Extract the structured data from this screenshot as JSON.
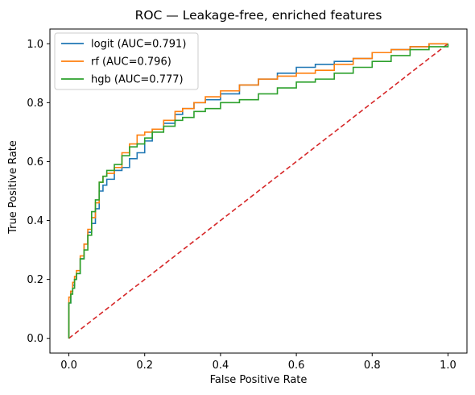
{
  "chart_data": {
    "type": "line",
    "title": "ROC — Leakage-free, enriched features",
    "xlabel": "False Positive Rate",
    "ylabel": "True Positive Rate",
    "xlim": [
      -0.05,
      1.05
    ],
    "ylim": [
      -0.05,
      1.05
    ],
    "xticks": [
      0.0,
      0.2,
      0.4,
      0.6,
      0.8,
      1.0
    ],
    "yticks": [
      0.0,
      0.2,
      0.4,
      0.6,
      0.8,
      1.0
    ],
    "xtick_labels": [
      "0.0",
      "0.2",
      "0.4",
      "0.6",
      "0.8",
      "1.0"
    ],
    "ytick_labels": [
      "0.0",
      "0.2",
      "0.4",
      "0.6",
      "0.8",
      "1.0"
    ],
    "grid": false,
    "legend_position": "upper-left",
    "series": [
      {
        "name": "logit (AUC=0.791)",
        "color": "#1f77b4",
        "x": [
          0.0,
          0.0,
          0.005,
          0.01,
          0.015,
          0.02,
          0.03,
          0.04,
          0.05,
          0.06,
          0.07,
          0.08,
          0.09,
          0.1,
          0.12,
          0.14,
          0.16,
          0.18,
          0.2,
          0.22,
          0.25,
          0.28,
          0.3,
          0.33,
          0.36,
          0.4,
          0.45,
          0.5,
          0.55,
          0.6,
          0.65,
          0.7,
          0.75,
          0.8,
          0.85,
          0.9,
          0.95,
          1.0
        ],
        "y": [
          0.0,
          0.12,
          0.16,
          0.18,
          0.2,
          0.22,
          0.27,
          0.32,
          0.36,
          0.39,
          0.44,
          0.5,
          0.52,
          0.54,
          0.57,
          0.58,
          0.61,
          0.63,
          0.67,
          0.71,
          0.73,
          0.76,
          0.78,
          0.8,
          0.81,
          0.83,
          0.86,
          0.88,
          0.9,
          0.92,
          0.93,
          0.94,
          0.95,
          0.97,
          0.98,
          0.99,
          1.0,
          1.0
        ]
      },
      {
        "name": "rf (AUC=0.796)",
        "color": "#ff7f0e",
        "x": [
          0.0,
          0.0,
          0.005,
          0.01,
          0.015,
          0.02,
          0.03,
          0.04,
          0.05,
          0.06,
          0.07,
          0.08,
          0.09,
          0.1,
          0.12,
          0.14,
          0.16,
          0.18,
          0.2,
          0.22,
          0.25,
          0.28,
          0.3,
          0.33,
          0.36,
          0.4,
          0.45,
          0.5,
          0.55,
          0.6,
          0.65,
          0.7,
          0.75,
          0.8,
          0.85,
          0.9,
          0.95,
          1.0
        ],
        "y": [
          0.0,
          0.14,
          0.16,
          0.19,
          0.21,
          0.23,
          0.28,
          0.32,
          0.37,
          0.41,
          0.46,
          0.53,
          0.55,
          0.56,
          0.58,
          0.63,
          0.66,
          0.69,
          0.7,
          0.71,
          0.74,
          0.77,
          0.78,
          0.8,
          0.82,
          0.84,
          0.86,
          0.88,
          0.89,
          0.9,
          0.91,
          0.93,
          0.95,
          0.97,
          0.98,
          0.99,
          1.0,
          1.0
        ]
      },
      {
        "name": "hgb (AUC=0.777)",
        "color": "#2ca02c",
        "x": [
          0.0,
          0.0,
          0.005,
          0.01,
          0.015,
          0.02,
          0.03,
          0.04,
          0.05,
          0.06,
          0.07,
          0.08,
          0.09,
          0.1,
          0.12,
          0.14,
          0.16,
          0.18,
          0.2,
          0.22,
          0.25,
          0.28,
          0.3,
          0.33,
          0.36,
          0.4,
          0.45,
          0.5,
          0.55,
          0.6,
          0.65,
          0.7,
          0.75,
          0.8,
          0.85,
          0.9,
          0.95,
          1.0
        ],
        "y": [
          0.0,
          0.12,
          0.15,
          0.17,
          0.2,
          0.22,
          0.27,
          0.3,
          0.35,
          0.43,
          0.47,
          0.53,
          0.55,
          0.57,
          0.59,
          0.62,
          0.65,
          0.66,
          0.68,
          0.7,
          0.72,
          0.74,
          0.75,
          0.77,
          0.78,
          0.8,
          0.81,
          0.83,
          0.85,
          0.87,
          0.88,
          0.9,
          0.92,
          0.94,
          0.96,
          0.98,
          0.99,
          1.0
        ]
      }
    ],
    "reference_line": {
      "style": "dashed",
      "color": "#d62728",
      "x": [
        0.0,
        1.0
      ],
      "y": [
        0.0,
        1.0
      ]
    }
  }
}
